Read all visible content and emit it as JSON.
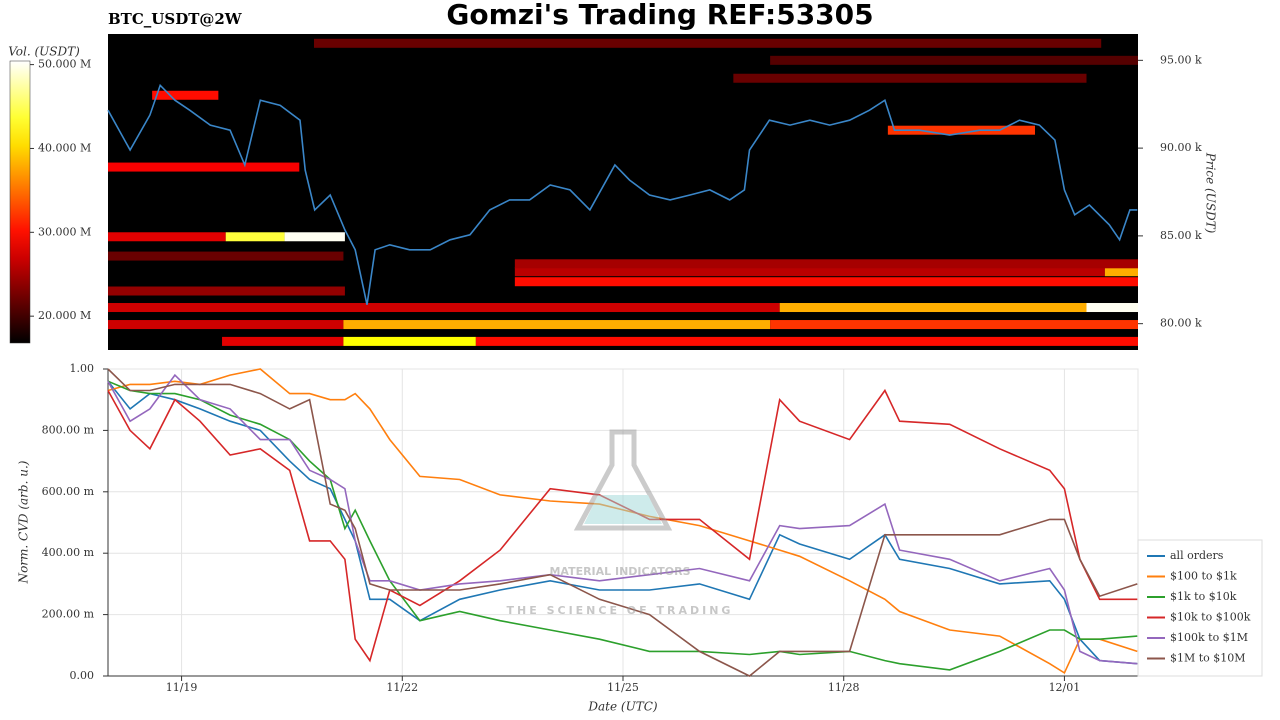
{
  "chart_data": [
    {
      "type": "heatmap",
      "title": "Gomzi's Trading REF:53305",
      "subtitle": "BTC_USDT@2W",
      "y_label": "Price (USDT)",
      "colorbar_label": "Vol. (USDT)",
      "colormap": "hot",
      "background": "#000000",
      "xlim": [
        0,
        14
      ],
      "ylim": [
        78500,
        96500
      ],
      "yticks": [
        {
          "value": 80000,
          "label": "80.00 k"
        },
        {
          "value": 85000,
          "label": "85.00 k"
        },
        {
          "value": 90000,
          "label": "90.00 k"
        },
        {
          "value": 95000,
          "label": "95.00 k"
        }
      ],
      "colorbar_lim": [
        16800000,
        50430000
      ],
      "colorbar_ticks": [
        {
          "value": 20000000,
          "label": "20.000 M"
        },
        {
          "value": 30000000,
          "label": "30.000 M"
        },
        {
          "value": 40000000,
          "label": "40.000 M"
        },
        {
          "value": 50000000,
          "label": "50.000 M"
        }
      ],
      "cells": [
        {
          "price": 84950,
          "start": 0,
          "end": 1.6,
          "volume": 28000000
        },
        {
          "price": 84950,
          "start": 1.6,
          "end": 2.4,
          "volume": 44000000
        },
        {
          "price": 84950,
          "start": 2.4,
          "end": 3.22,
          "volume": 50000000
        },
        {
          "price": 79950,
          "start": 0,
          "end": 3.2,
          "volume": 27000000
        },
        {
          "price": 79950,
          "start": 3.2,
          "end": 9,
          "volume": 38000000
        },
        {
          "price": 79950,
          "start": 9,
          "end": 14,
          "volume": 32000000
        },
        {
          "price": 78990,
          "start": 1.55,
          "end": 3.2,
          "volume": 28000000
        },
        {
          "price": 78990,
          "start": 3.2,
          "end": 5,
          "volume": 42000000
        },
        {
          "price": 78990,
          "start": 5,
          "end": 14,
          "volume": 30000000
        },
        {
          "price": 80920,
          "start": 0,
          "end": 9.13,
          "volume": 27000000
        },
        {
          "price": 80920,
          "start": 9.13,
          "end": 13.3,
          "volume": 38000000
        },
        {
          "price": 80920,
          "start": 13.3,
          "end": 14,
          "volume": 50000000
        },
        {
          "price": 82390,
          "start": 5.53,
          "end": 14,
          "volume": 30000000
        },
        {
          "price": 82960,
          "start": 5.53,
          "end": 13.55,
          "volume": 26000000
        },
        {
          "price": 82960,
          "start": 13.55,
          "end": 14,
          "volume": 38000000
        },
        {
          "price": 83410,
          "start": 5.53,
          "end": 14,
          "volume": 25000000
        },
        {
          "price": 88920,
          "start": 0,
          "end": 2.6,
          "volume": 29000000
        },
        {
          "price": 81860,
          "start": 0,
          "end": 3.22,
          "volume": 24000000
        },
        {
          "price": 83850,
          "start": 0,
          "end": 3.2,
          "volume": 22000000
        },
        {
          "price": 91020,
          "start": 10.6,
          "end": 12.6,
          "volume": 32000000
        },
        {
          "price": 95970,
          "start": 2.8,
          "end": 13.5,
          "volume": 22000000
        },
        {
          "price": 95000,
          "start": 9,
          "end": 14,
          "volume": 21000000
        },
        {
          "price": 93980,
          "start": 8.5,
          "end": 13.3,
          "volume": 22000000
        },
        {
          "price": 93010,
          "start": 0.6,
          "end": 1.5,
          "volume": 30000000
        }
      ],
      "series": [
        {
          "name": "price",
          "color": "#3a86c8",
          "x": [
            0,
            0.3,
            0.57,
            0.71,
            0.91,
            1.11,
            1.39,
            1.66,
            1.86,
            2.07,
            2.34,
            2.61,
            2.68,
            2.81,
            3.02,
            3.22,
            3.36,
            3.52,
            3.63,
            3.83,
            4.1,
            4.38,
            4.65,
            4.92,
            5.19,
            5.46,
            5.73,
            6.01,
            6.28,
            6.55,
            6.89,
            7.09,
            7.36,
            7.64,
            7.91,
            8.18,
            8.45,
            8.65,
            8.72,
            8.99,
            9.27,
            9.54,
            9.81,
            10.08,
            10.35,
            10.56,
            10.69,
            11.03,
            11.44,
            11.85,
            12.12,
            12.39,
            12.66,
            12.87,
            13.0,
            13.14,
            13.34,
            13.61,
            13.75,
            13.89,
            13.99
          ],
          "values": [
            92160,
            89890,
            91880,
            93580,
            92730,
            92160,
            91310,
            91020,
            89040,
            92730,
            92440,
            91590,
            88750,
            86480,
            87330,
            85340,
            84210,
            81080,
            84210,
            84490,
            84210,
            84210,
            84780,
            85060,
            86480,
            87050,
            87050,
            87900,
            87620,
            86480,
            89040,
            88180,
            87330,
            87050,
            87330,
            87620,
            87050,
            87620,
            89890,
            91590,
            91310,
            91590,
            91310,
            91590,
            92160,
            92730,
            91020,
            91020,
            90740,
            91020,
            91020,
            91590,
            91310,
            90460,
            87620,
            86200,
            86760,
            85630,
            84780,
            86480,
            86480
          ]
        }
      ]
    },
    {
      "type": "line",
      "x_label": "Date (UTC)",
      "y_label": "Norm. CVD (arb. u.)",
      "watermark": "MATERIAL INDICATORS",
      "watermark_sub": "THE SCIENCE OF TRADING",
      "grid": true,
      "legend": "lower-right-outside",
      "xlim": [
        0,
        14
      ],
      "ylim": [
        0,
        1
      ],
      "xticks": [
        {
          "value": 1,
          "label": "11/19"
        },
        {
          "value": 4,
          "label": "11/22"
        },
        {
          "value": 7,
          "label": "11/25"
        },
        {
          "value": 10,
          "label": "11/28"
        },
        {
          "value": 13,
          "label": "12/01"
        }
      ],
      "yticks": [
        {
          "value": 0,
          "label": "0.00"
        },
        {
          "value": 0.2,
          "label": "200.00 m"
        },
        {
          "value": 0.4,
          "label": "400.00 m"
        },
        {
          "value": 0.6,
          "label": "600.00 m"
        },
        {
          "value": 0.8,
          "label": "800.00 m"
        },
        {
          "value": 1,
          "label": "1.00"
        }
      ],
      "x": [
        0,
        0.3,
        0.57,
        0.91,
        1.25,
        1.66,
        2.07,
        2.47,
        2.74,
        3.02,
        3.22,
        3.36,
        3.56,
        3.83,
        4.24,
        4.78,
        5.33,
        6.01,
        6.68,
        7.36,
        8.04,
        8.72,
        9.13,
        9.4,
        10.08,
        10.56,
        10.76,
        11.44,
        12.12,
        12.8,
        13.0,
        13.21,
        13.48,
        13.99
      ],
      "series": [
        {
          "name": "all orders",
          "color": "#1f77b4",
          "values": [
            0.96,
            0.87,
            0.92,
            0.9,
            0.87,
            0.83,
            0.8,
            0.7,
            0.64,
            0.61,
            0.51,
            0.44,
            0.25,
            0.25,
            0.18,
            0.25,
            0.28,
            0.31,
            0.28,
            0.28,
            0.3,
            0.25,
            0.46,
            0.43,
            0.38,
            0.46,
            0.38,
            0.35,
            0.3,
            0.31,
            0.25,
            0.12,
            0.05,
            0.04
          ]
        },
        {
          "name": "$100 to $1k",
          "color": "#ff7f0e",
          "values": [
            0.93,
            0.95,
            0.95,
            0.96,
            0.95,
            0.98,
            1.0,
            0.92,
            0.92,
            0.9,
            0.9,
            0.92,
            0.87,
            0.77,
            0.65,
            0.64,
            0.59,
            0.57,
            0.56,
            0.52,
            0.49,
            0.44,
            0.41,
            0.39,
            0.31,
            0.25,
            0.21,
            0.15,
            0.13,
            0.04,
            0.01,
            0.12,
            0.12,
            0.08
          ]
        },
        {
          "name": "$1k to $10k",
          "color": "#2ca02c",
          "values": [
            0.96,
            0.93,
            0.92,
            0.92,
            0.9,
            0.85,
            0.82,
            0.77,
            0.7,
            0.64,
            0.48,
            0.54,
            0.44,
            0.31,
            0.18,
            0.21,
            0.18,
            0.15,
            0.12,
            0.08,
            0.08,
            0.07,
            0.08,
            0.07,
            0.08,
            0.05,
            0.04,
            0.02,
            0.08,
            0.15,
            0.15,
            0.12,
            0.12,
            0.13
          ]
        },
        {
          "name": "$10k to $100k",
          "color": "#d62728",
          "values": [
            0.93,
            0.8,
            0.74,
            0.9,
            0.83,
            0.72,
            0.74,
            0.67,
            0.44,
            0.44,
            0.38,
            0.12,
            0.05,
            0.28,
            0.23,
            0.31,
            0.41,
            0.61,
            0.59,
            0.51,
            0.51,
            0.38,
            0.9,
            0.83,
            0.77,
            0.93,
            0.83,
            0.82,
            0.74,
            0.67,
            0.61,
            0.38,
            0.25,
            0.25
          ]
        },
        {
          "name": "$100k to $1M",
          "color": "#9467bd",
          "values": [
            0.96,
            0.83,
            0.87,
            0.98,
            0.9,
            0.87,
            0.77,
            0.77,
            0.67,
            0.64,
            0.61,
            0.44,
            0.31,
            0.31,
            0.28,
            0.3,
            0.31,
            0.33,
            0.31,
            0.33,
            0.35,
            0.31,
            0.49,
            0.48,
            0.49,
            0.56,
            0.41,
            0.38,
            0.31,
            0.35,
            0.28,
            0.08,
            0.05,
            0.04
          ]
        },
        {
          "name": "$1M to $10M",
          "color": "#8c564b",
          "values": [
            1.0,
            0.93,
            0.93,
            0.95,
            0.95,
            0.95,
            0.92,
            0.87,
            0.9,
            0.56,
            0.54,
            0.48,
            0.3,
            0.28,
            0.28,
            0.28,
            0.3,
            0.33,
            0.25,
            0.2,
            0.08,
            0.0,
            0.08,
            0.08,
            0.08,
            0.46,
            0.46,
            0.46,
            0.46,
            0.51,
            0.51,
            0.38,
            0.26,
            0.3
          ]
        }
      ]
    }
  ]
}
